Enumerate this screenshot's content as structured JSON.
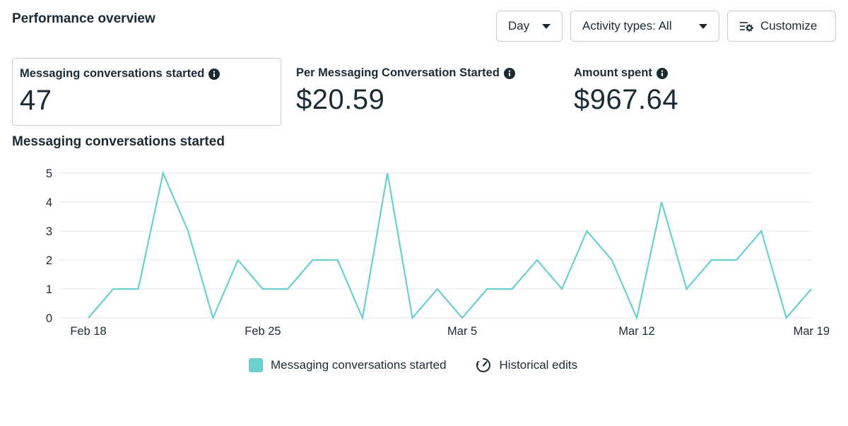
{
  "header": {
    "title": "Performance overview"
  },
  "toolbar": {
    "day_label": "Day",
    "activity_label": "Activity types: All",
    "customize_label": "Customize"
  },
  "metrics": [
    {
      "label": "Messaging conversations started",
      "value": "47"
    },
    {
      "label": "Per Messaging Conversation Started",
      "value": "$20.59"
    },
    {
      "label": "Amount spent",
      "value": "$967.64"
    }
  ],
  "chart_section": {
    "title": "Messaging conversations started"
  },
  "legend": {
    "series_label": "Messaging conversations started",
    "historical_label": "Historical edits"
  },
  "colors": {
    "series": "#6ccfd0",
    "grid": "#e4e6eb",
    "text": "#1c2b33"
  },
  "chart_data": {
    "type": "line",
    "title": "Messaging conversations started",
    "x_ticks": [
      "Feb 18",
      "Feb 25",
      "Mar 5",
      "Mar 12",
      "Mar 19"
    ],
    "y_ticks": [
      "0",
      "1",
      "2",
      "3",
      "4",
      "5"
    ],
    "ylim": [
      0,
      5
    ],
    "grid": true,
    "legend_position": "bottom",
    "series": [
      {
        "name": "Messaging conversations started",
        "values": [
          0,
          1,
          1,
          5,
          3,
          0,
          2,
          1,
          1,
          2,
          2,
          0,
          5,
          0,
          1,
          0,
          1,
          1,
          2,
          1,
          3,
          2,
          0,
          4,
          1,
          2,
          2,
          3,
          0,
          1
        ]
      }
    ]
  }
}
